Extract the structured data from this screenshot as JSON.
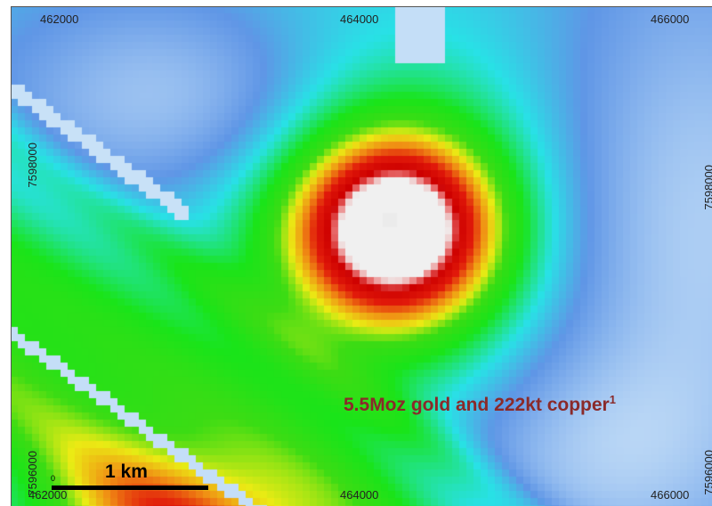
{
  "map": {
    "x_ticks_top": [
      "462000",
      "464000",
      "466000"
    ],
    "x_ticks_bottom": [
      "462000",
      "464000",
      "466000"
    ],
    "y_ticks_left": [
      "7598000",
      "7596000"
    ],
    "y_ticks_right": [
      "7598000",
      "7596000"
    ],
    "annotation": "5.5Moz gold and 222kt copper",
    "annotation_footnote": "1",
    "scale_label": "1 km",
    "scale_zero": "0",
    "colors": {
      "anomaly_red": "#e00000",
      "green": "#19e619",
      "cyan": "#2ce6e6",
      "blue": "#5a96e6",
      "annotation_text": "#8a2a2a"
    }
  }
}
